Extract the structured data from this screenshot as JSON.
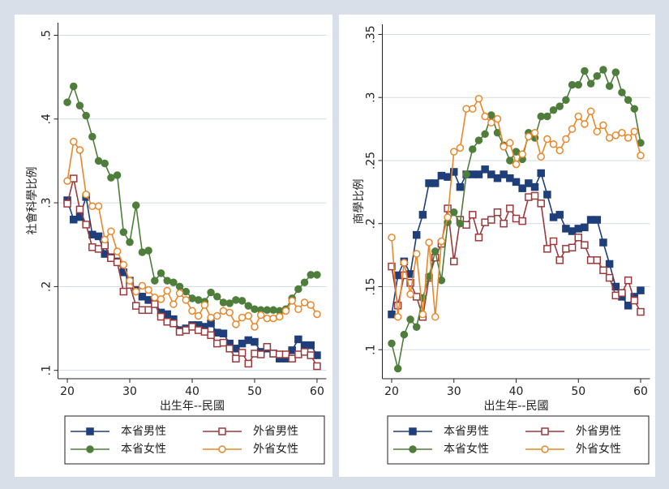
{
  "chart_data": [
    {
      "type": "line",
      "ylabel": "社會科學比例",
      "xlabel": "出生年--民國",
      "x": [
        20,
        21,
        22,
        23,
        24,
        25,
        26,
        27,
        28,
        29,
        30,
        31,
        32,
        33,
        34,
        35,
        36,
        37,
        38,
        39,
        40,
        41,
        42,
        43,
        44,
        45,
        46,
        47,
        48,
        49,
        50,
        51,
        52,
        53,
        54,
        55,
        56,
        57,
        58,
        59,
        60
      ],
      "xlim": [
        18.5,
        61.5
      ],
      "xticks": [
        20,
        30,
        40,
        50,
        60
      ],
      "ylim": [
        0.09,
        0.515
      ],
      "yticks": [
        {
          "value": 0.1,
          "label": ".1"
        },
        {
          "value": 0.2,
          "label": ".2"
        },
        {
          "value": 0.3,
          "label": ".3"
        },
        {
          "value": 0.4,
          "label": ".4"
        },
        {
          "value": 0.5,
          "label": ".5"
        }
      ],
      "grid": true,
      "legend": "bottom",
      "series": [
        {
          "name": "本省男性",
          "color": "#1f3f7a",
          "marker": "square",
          "filled": true,
          "values": [
            0.303,
            0.28,
            0.283,
            0.307,
            0.262,
            0.26,
            0.239,
            0.235,
            0.23,
            0.217,
            0.207,
            0.196,
            0.188,
            0.184,
            0.181,
            0.169,
            0.167,
            0.161,
            0.148,
            0.15,
            0.154,
            0.154,
            0.152,
            0.156,
            0.145,
            0.144,
            0.132,
            0.126,
            0.132,
            0.136,
            0.134,
            0.122,
            0.126,
            0.12,
            0.114,
            0.114,
            0.124,
            0.137,
            0.13,
            0.13,
            0.118
          ]
        },
        {
          "name": "外省男性",
          "color": "#9a3a3c",
          "marker": "square",
          "filled": false,
          "values": [
            0.299,
            0.329,
            0.292,
            0.274,
            0.247,
            0.245,
            0.249,
            0.234,
            0.229,
            0.194,
            0.202,
            0.177,
            0.172,
            0.172,
            0.179,
            0.164,
            0.158,
            0.156,
            0.146,
            0.148,
            0.152,
            0.148,
            0.146,
            0.142,
            0.132,
            0.133,
            0.126,
            0.114,
            0.121,
            0.108,
            0.12,
            0.119,
            0.128,
            0.12,
            0.119,
            0.119,
            0.114,
            0.119,
            0.122,
            0.118,
            0.105
          ]
        },
        {
          "name": "本省女性",
          "color": "#4f7d3b",
          "marker": "circle",
          "filled": true,
          "values": [
            0.42,
            0.439,
            0.416,
            0.404,
            0.379,
            0.35,
            0.347,
            0.33,
            0.333,
            0.265,
            0.253,
            0.297,
            0.241,
            0.243,
            0.207,
            0.216,
            0.207,
            0.205,
            0.2,
            0.194,
            0.186,
            0.184,
            0.182,
            0.193,
            0.188,
            0.181,
            0.18,
            0.184,
            0.183,
            0.177,
            0.173,
            0.172,
            0.172,
            0.172,
            0.171,
            0.173,
            0.186,
            0.197,
            0.205,
            0.214,
            0.214
          ]
        },
        {
          "name": "外省女性",
          "color": "#e8872b",
          "marker": "circle",
          "filled": false,
          "values": [
            0.326,
            0.373,
            0.363,
            0.31,
            0.296,
            0.296,
            0.256,
            0.266,
            0.242,
            0.226,
            0.207,
            0.194,
            0.201,
            0.196,
            0.187,
            0.185,
            0.195,
            0.179,
            0.192,
            0.184,
            0.171,
            0.165,
            0.178,
            0.163,
            0.165,
            0.171,
            0.169,
            0.155,
            0.163,
            0.165,
            0.152,
            0.166,
            0.162,
            0.162,
            0.164,
            0.171,
            0.183,
            0.173,
            0.181,
            0.178,
            0.167
          ]
        }
      ]
    },
    {
      "type": "line",
      "ylabel": "商學比例",
      "xlabel": "出生年--民國",
      "x": [
        20,
        21,
        22,
        23,
        24,
        25,
        26,
        27,
        28,
        29,
        30,
        31,
        32,
        33,
        34,
        35,
        36,
        37,
        38,
        39,
        40,
        41,
        42,
        43,
        44,
        45,
        46,
        47,
        48,
        49,
        50,
        51,
        52,
        53,
        54,
        55,
        56,
        57,
        58,
        59,
        60
      ],
      "xlim": [
        18.5,
        61.5
      ],
      "xticks": [
        20,
        30,
        40,
        50,
        60
      ],
      "ylim": [
        0.077,
        0.358
      ],
      "yticks": [
        {
          "value": 0.1,
          "label": ".1"
        },
        {
          "value": 0.15,
          "label": ".15"
        },
        {
          "value": 0.2,
          "label": ".2"
        },
        {
          "value": 0.25,
          "label": ".25"
        },
        {
          "value": 0.3,
          "label": ".3"
        },
        {
          "value": 0.35,
          "label": ".35"
        }
      ],
      "grid": true,
      "legend": "bottom",
      "series": [
        {
          "name": "本省男性",
          "color": "#1f3f7a",
          "marker": "square",
          "filled": true,
          "values": [
            0.128,
            0.159,
            0.17,
            0.16,
            0.191,
            0.207,
            0.232,
            0.232,
            0.238,
            0.237,
            0.241,
            0.229,
            0.239,
            0.239,
            0.239,
            0.243,
            0.239,
            0.236,
            0.239,
            0.236,
            0.233,
            0.228,
            0.232,
            0.229,
            0.24,
            0.223,
            0.205,
            0.207,
            0.196,
            0.194,
            0.196,
            0.197,
            0.203,
            0.203,
            0.185,
            0.168,
            0.15,
            0.142,
            0.135,
            0.142,
            0.147
          ]
        },
        {
          "name": "外省男性",
          "color": "#9a3a3c",
          "marker": "square",
          "filled": false,
          "values": [
            0.166,
            0.135,
            0.159,
            0.153,
            0.142,
            0.126,
            0.157,
            0.173,
            0.184,
            0.212,
            0.17,
            0.203,
            0.199,
            0.207,
            0.189,
            0.201,
            0.203,
            0.209,
            0.2,
            0.212,
            0.204,
            0.202,
            0.221,
            0.222,
            0.216,
            0.18,
            0.186,
            0.171,
            0.18,
            0.181,
            0.189,
            0.183,
            0.171,
            0.171,
            0.163,
            0.157,
            0.143,
            0.145,
            0.155,
            0.139,
            0.13
          ]
        },
        {
          "name": "本省女性",
          "color": "#4f7d3b",
          "marker": "circle",
          "filled": true,
          "values": [
            0.105,
            0.085,
            0.112,
            0.124,
            0.118,
            0.141,
            0.158,
            0.178,
            0.155,
            0.201,
            0.209,
            0.2,
            0.239,
            0.259,
            0.266,
            0.271,
            0.286,
            0.272,
            0.262,
            0.25,
            0.257,
            0.251,
            0.272,
            0.268,
            0.285,
            0.285,
            0.29,
            0.293,
            0.298,
            0.31,
            0.31,
            0.321,
            0.311,
            0.317,
            0.322,
            0.309,
            0.32,
            0.304,
            0.298,
            0.291,
            0.264
          ]
        },
        {
          "name": "外省女性",
          "color": "#e8872b",
          "marker": "circle",
          "filled": false,
          "values": [
            0.189,
            0.126,
            0.169,
            0.144,
            0.176,
            0.128,
            0.185,
            0.126,
            0.186,
            0.205,
            0.257,
            0.26,
            0.291,
            0.291,
            0.299,
            0.285,
            0.28,
            0.283,
            0.261,
            0.264,
            0.247,
            0.255,
            0.269,
            0.272,
            0.253,
            0.267,
            0.263,
            0.258,
            0.267,
            0.275,
            0.285,
            0.279,
            0.289,
            0.273,
            0.278,
            0.268,
            0.27,
            0.272,
            0.268,
            0.273,
            0.254
          ]
        }
      ]
    }
  ]
}
